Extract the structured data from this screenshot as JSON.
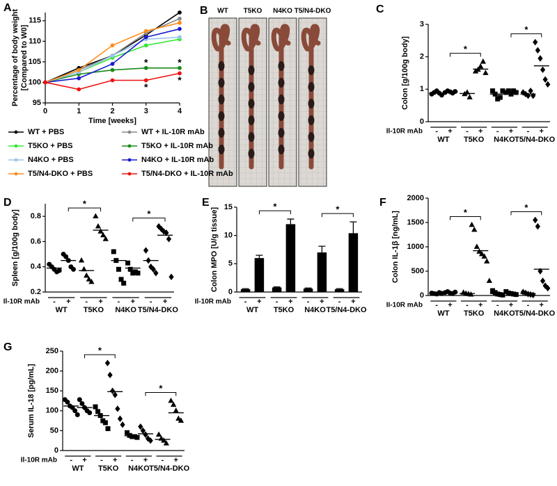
{
  "figure_b": {
    "label": "B",
    "columns": [
      "WT",
      "T5KO",
      "N4KO",
      "T5/N4-DKO"
    ]
  },
  "chart_data": [
    {
      "type": "line",
      "label": "A",
      "x": [
        0,
        1,
        2,
        3,
        4
      ],
      "xlim": [
        0,
        4
      ],
      "xticks": [
        0,
        1,
        2,
        3,
        4
      ],
      "ylim": [
        95,
        117
      ],
      "yticks": [
        95,
        100,
        105,
        110,
        115
      ],
      "xlabel": "Time [weeks]",
      "ylabel": [
        "Percentage of body weight",
        "[Compared to W0]"
      ],
      "series": [
        {
          "name": "WT + PBS",
          "color": "#000000",
          "values": [
            100,
            103.5,
            106.5,
            111.5,
            117
          ]
        },
        {
          "name": "WT + IL-10R mAb",
          "color": "#888888",
          "values": [
            100,
            103,
            106.5,
            112,
            115.5
          ]
        },
        {
          "name": "T5KO + PBS",
          "color": "#33e633",
          "values": [
            100,
            102.5,
            106,
            109,
            110.5
          ]
        },
        {
          "name": "T5KO + IL-10R mAb",
          "color": "#1a8a1a",
          "values": [
            100,
            102,
            103,
            103.5,
            103.5
          ]
        },
        {
          "name": "N4KO + PBS",
          "color": "#99c4ee",
          "values": [
            100,
            102.5,
            106.5,
            110.5,
            111
          ]
        },
        {
          "name": "N4KO + IL-10R mAb",
          "color": "#1a1acc",
          "values": [
            100,
            101,
            104.5,
            111,
            113
          ]
        },
        {
          "name": "T5/N4-DKO + PBS",
          "color": "#ff8c1a",
          "values": [
            100,
            103,
            109,
            112.5,
            114.5
          ]
        },
        {
          "name": "T5/N4-DKO + IL-10R mAb",
          "color": "#ee1111",
          "values": [
            100,
            98.3,
            100.5,
            100.5,
            102.2
          ]
        }
      ],
      "annotations": [
        {
          "text": "*",
          "series": 3,
          "at": 3,
          "side": "above"
        },
        {
          "text": "*",
          "series": 7,
          "at": 3,
          "side": "below"
        },
        {
          "text": "*",
          "series": 3,
          "at": 4,
          "side": "above"
        },
        {
          "text": "*",
          "series": 7,
          "at": 4,
          "side": "below"
        }
      ]
    },
    {
      "type": "strip",
      "label": "C",
      "ylabel": "Colon [g/100g body]",
      "ylim": [
        0,
        3
      ],
      "yticks": [
        0,
        1,
        2,
        3
      ],
      "treatment_label": "Il-10R mAb",
      "categories": [
        "-",
        "+",
        "-",
        "+",
        "-",
        "+",
        "-",
        "+"
      ],
      "groups": [
        "WT",
        "T5KO",
        "N4KO",
        "T5/N4-DKO"
      ],
      "markers": [
        "circle",
        "circle",
        "triangle",
        "triangle",
        "square",
        "square",
        "diamond",
        "diamond"
      ],
      "points": [
        [
          0.85,
          0.9,
          0.95,
          0.88,
          0.82
        ],
        [
          0.9,
          0.95,
          0.92,
          0.88,
          0.93
        ],
        [
          0.85,
          0.9,
          0.75
        ],
        [
          1.55,
          1.6,
          1.7,
          1.85,
          1.5
        ],
        [
          0.95,
          0.85,
          0.7,
          0.75,
          0.95
        ],
        [
          0.9,
          0.95,
          0.85,
          0.95,
          0.9
        ],
        [
          0.9,
          0.85,
          0.8,
          0.95,
          0.8
        ],
        [
          2.45,
          2.2,
          1.95,
          1.6,
          1.3,
          1.15
        ]
      ],
      "medians": [
        0.88,
        0.92,
        0.87,
        1.62,
        0.85,
        0.92,
        0.85,
        1.72
      ],
      "significance": [
        {
          "between": [
            1,
            3
          ],
          "text": "*"
        },
        {
          "between": [
            5,
            7
          ],
          "text": "*"
        }
      ]
    },
    {
      "type": "strip",
      "label": "D",
      "ylabel": "Spleen [g/100g body]",
      "ylim": [
        0.2,
        0.9
      ],
      "yticks": [
        0.2,
        0.4,
        0.6,
        0.8
      ],
      "treatment_label": "Il-10R mAb",
      "categories": [
        "-",
        "+",
        "-",
        "+",
        "-",
        "+",
        "-",
        "+"
      ],
      "groups": [
        "WT",
        "T5KO",
        "N4KO",
        "T5/N4-DKO"
      ],
      "markers": [
        "circle",
        "circle",
        "triangle",
        "triangle",
        "square",
        "square",
        "diamond",
        "diamond"
      ],
      "points": [
        [
          0.42,
          0.4,
          0.38,
          0.36,
          0.37
        ],
        [
          0.5,
          0.48,
          0.45,
          0.4,
          0.38
        ],
        [
          0.45,
          0.38,
          0.33,
          0.3,
          0.28
        ],
        [
          0.8,
          0.72,
          0.68,
          0.65,
          0.62
        ],
        [
          0.52,
          0.45,
          0.38,
          0.3,
          0.27
        ],
        [
          0.43,
          0.38,
          0.35,
          0.36,
          0.35
        ],
        [
          0.53,
          0.45,
          0.4,
          0.38,
          0.35
        ],
        [
          0.72,
          0.7,
          0.68,
          0.67,
          0.62,
          0.32
        ]
      ],
      "medians": [
        0.39,
        0.45,
        0.37,
        0.69,
        0.45,
        0.39,
        0.45,
        0.65
      ],
      "significance": [
        {
          "between": [
            1,
            3
          ],
          "text": "*"
        },
        {
          "between": [
            5,
            7
          ],
          "text": "*"
        }
      ]
    },
    {
      "type": "bar",
      "label": "E",
      "ylabel": "Colon MPO [U/g tissue]",
      "ylim": [
        0,
        15
      ],
      "yticks": [
        0,
        5,
        10,
        15
      ],
      "treatment_label": "Il-10R mAb",
      "color": "#000000",
      "categories": [
        "-",
        "+",
        "-",
        "+",
        "-",
        "+",
        "-",
        "+"
      ],
      "groups": [
        "WT",
        "T5KO",
        "N4KO",
        "T5/N4-DKO"
      ],
      "values": [
        0.5,
        6,
        0.8,
        12,
        0.6,
        7,
        0.5,
        10.4
      ],
      "errors": [
        0.1,
        0.5,
        0.1,
        0.9,
        0.1,
        1.1,
        0.1,
        2
      ],
      "significance": [
        {
          "between": [
            1,
            3
          ],
          "text": "*"
        },
        {
          "between": [
            5,
            7
          ],
          "text": "*"
        }
      ]
    },
    {
      "type": "strip",
      "label": "F",
      "ylabel": "Colon IL-1β [ng/mL]",
      "ylim": [
        0,
        2000
      ],
      "yticks": [
        0,
        500,
        1000,
        1500,
        2000
      ],
      "treatment_label": "II-10R mAb",
      "categories": [
        "-",
        "+",
        "-",
        "+",
        "-",
        "+",
        "-",
        "+"
      ],
      "groups": [
        "WT",
        "T5KO",
        "N4KO",
        "T5/N4-DKO"
      ],
      "markers": [
        "circle",
        "circle",
        "triangle",
        "triangle",
        "square",
        "square",
        "diamond",
        "diamond"
      ],
      "points": [
        [
          50,
          40,
          30,
          60,
          45
        ],
        [
          60,
          80,
          50,
          40,
          70
        ],
        [
          60,
          40,
          30,
          20
        ],
        [
          1450,
          1350,
          1000,
          900,
          850,
          800,
          700,
          300
        ],
        [
          100,
          60,
          30,
          20,
          10
        ],
        [
          80,
          50,
          40,
          30,
          20
        ],
        [
          70,
          50,
          30,
          20,
          10
        ],
        [
          1550,
          1420,
          500,
          300,
          200,
          150
        ]
      ],
      "medians": [
        45,
        60,
        40,
        920,
        40,
        40,
        40,
        540
      ],
      "significance": [
        {
          "between": [
            1,
            3
          ],
          "text": "*"
        },
        {
          "between": [
            5,
            7
          ],
          "text": "*"
        }
      ]
    },
    {
      "type": "strip",
      "label": "G",
      "ylabel": "Serum IL-18 [pg/mL]",
      "ylim": [
        0,
        250
      ],
      "yticks": [
        0,
        50,
        100,
        150,
        200,
        250
      ],
      "treatment_label": "Il-10R mAb",
      "categories": [
        "-",
        "+",
        "-",
        "+",
        "-",
        "+",
        "-",
        "+"
      ],
      "groups": [
        "WT",
        "T5KO",
        "N4KO",
        "T5/N4-DKO"
      ],
      "markers": [
        "circle",
        "circle",
        "square",
        "diamond",
        "square",
        "diamond",
        "triangle",
        "triangle"
      ],
      "points": [
        [
          128,
          122,
          112,
          108,
          100,
          90
        ],
        [
          128,
          118,
          108,
          100,
          95
        ],
        [
          110,
          98,
          88,
          75,
          70,
          55
        ],
        [
          220,
          190,
          150,
          140,
          105,
          80,
          65
        ],
        [
          45,
          38,
          35,
          35,
          33
        ],
        [
          60,
          50,
          40,
          30,
          25
        ],
        [
          40,
          30,
          25,
          18
        ],
        [
          125,
          115,
          100,
          80,
          75
        ]
      ],
      "medians": [
        112,
        108,
        88,
        148,
        37,
        42,
        28,
        95
      ],
      "significance": [
        {
          "between": [
            1,
            3
          ],
          "text": "*"
        },
        {
          "between": [
            5,
            7
          ],
          "text": "*"
        }
      ]
    }
  ]
}
